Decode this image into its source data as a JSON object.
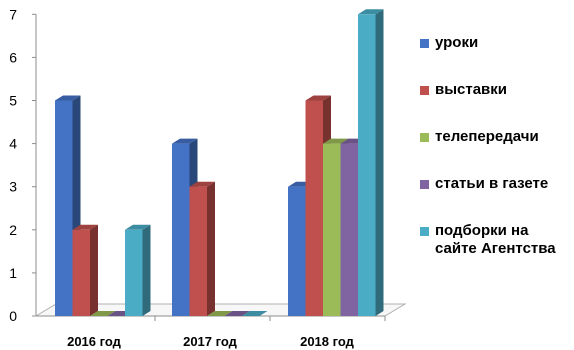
{
  "chart_data": {
    "type": "bar",
    "categories": [
      "2016 год",
      "2017 год",
      "2018 год"
    ],
    "series": [
      {
        "name": "уроки",
        "values": [
          5,
          4,
          3
        ],
        "color": "#4472C4"
      },
      {
        "name": "выставки",
        "values": [
          2,
          3,
          5
        ],
        "color": "#C0504D"
      },
      {
        "name": "телепередачи",
        "values": [
          0,
          0,
          4
        ],
        "color": "#9BBB59"
      },
      {
        "name": "статьи в газете",
        "values": [
          0,
          0,
          4
        ],
        "color": "#8064A2"
      },
      {
        "name": "подборки на сайте Агентства",
        "values": [
          2,
          0,
          7
        ],
        "color": "#4BACC6"
      }
    ],
    "y_ticks": [
      "0",
      "1",
      "2",
      "3",
      "4",
      "5",
      "6",
      "7"
    ],
    "ylim": [
      0,
      7
    ],
    "legend_position": "right",
    "grid": false,
    "style": "3d-clustered-column"
  }
}
